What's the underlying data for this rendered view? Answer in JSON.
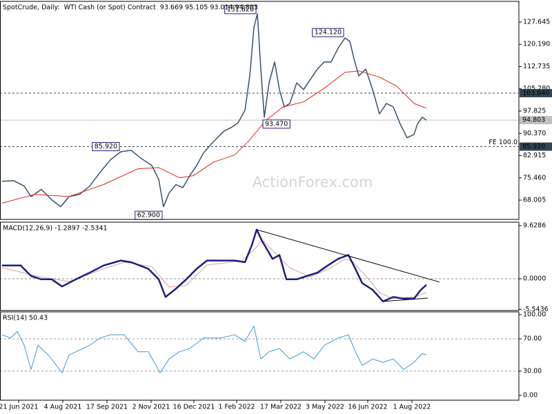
{
  "chart_data": [
    {
      "type": "line",
      "title": "SpotCrude, Daily:  WTI Cash (or Spot) Contract  93.669 95.105 93.014 94.803",
      "watermark": "ActionForex.com",
      "xlim": [
        -1.5,
        374.5
      ],
      "ylim": [
        61.54,
        134.57
      ],
      "yticks": [
        127.645,
        {
          "value": 120.19,
          "label": "120.190"
        },
        112.735,
        {
          "value": 105.28,
          "label": "105.280"
        },
        97.825,
        {
          "value": 90.37,
          "label": "90.370"
        },
        82.915,
        {
          "value": 75.46,
          "label": "75.460"
        },
        68.005
      ],
      "series": [
        {
          "color": "#34506b",
          "line_width": 1.5,
          "x": [
            0,
            8.5,
            16,
            21,
            28.5,
            36,
            42.5,
            48.5,
            56,
            63.5,
            71,
            78.5,
            86,
            93.5,
            101,
            108.5,
            113.5,
            117,
            121,
            126,
            131,
            136,
            141,
            146,
            151,
            156,
            161,
            166,
            171,
            176,
            179.5,
            182.5,
            185,
            187.5,
            190,
            193.5,
            197.5,
            201,
            204.5,
            208.5,
            213.5,
            218.5,
            223.5,
            228.5,
            233.5,
            238.5,
            243.5,
            248.5,
            252,
            255,
            258.5,
            263.5,
            268.5,
            273.5,
            278.5,
            283.5,
            288.5,
            293.5,
            298.5,
            301,
            304.5,
            307.5
          ],
          "values": [
            74.3,
            74.5,
            72.7,
            69.2,
            71.6,
            68.1,
            65.8,
            69.2,
            69.9,
            72.7,
            77.3,
            81.5,
            84.2,
            84.7,
            81.9,
            79.6,
            75.0,
            65.8,
            70.4,
            73.2,
            72.2,
            76.2,
            79.6,
            83.8,
            86.5,
            88.9,
            91.2,
            92.3,
            93.9,
            98.1,
            109.6,
            125.8,
            130.4,
            111.9,
            95.8,
            107.3,
            114.3,
            105.0,
            99.2,
            100.4,
            107.3,
            105.0,
            108.5,
            111.9,
            114.3,
            114.3,
            118.9,
            122.3,
            121.2,
            115.4,
            109.6,
            111.9,
            105.0,
            96.9,
            100.4,
            99.2,
            93.5,
            88.9,
            90.0,
            93.5,
            95.8,
            94.8
          ]
        },
        {
          "color": "#e02020",
          "line_width": 1,
          "x": [
            0,
            23.5,
            48.5,
            73.5,
            98.5,
            113.5,
            128.5,
            138.5,
            153.5,
            168.5,
            178.5,
            191,
            203.5,
            218.5,
            233.5,
            248.5,
            258.5,
            273.5,
            286,
            298.5,
            307.5
          ],
          "values": [
            67.0,
            69.9,
            69.2,
            73.2,
            78.5,
            78.9,
            75.5,
            76.2,
            80.8,
            83.1,
            87.7,
            94.6,
            99.2,
            100.9,
            105.5,
            110.8,
            111.3,
            109.2,
            106.2,
            100.4,
            98.8
          ]
        }
      ],
      "hlines": [
        {
          "value": 103.84,
          "label": "103.840",
          "style": "dashed",
          "color": "#34454f",
          "box_color": "#34454f"
        },
        {
          "value": 94.803,
          "label": "94.803",
          "style": "solid",
          "color": "#c0c0c0",
          "box_color": "#c0c0c0"
        },
        {
          "value": 85.92,
          "label": "85.920",
          "note": "FE 100.0",
          "style": "dashed",
          "color": "#34454f",
          "box_color": "#34454f"
        }
      ],
      "annotations": [
        {
          "x": 185,
          "value": 131.82,
          "label": "131.820",
          "side": "left"
        },
        {
          "x": 248.5,
          "value": 124.12,
          "label": "124.120",
          "side": "left"
        },
        {
          "x": 188,
          "value": 93.47,
          "label": "93.470",
          "side": "right"
        },
        {
          "x": 86,
          "value": 85.92,
          "label": "85.920",
          "side": "left"
        },
        {
          "x": 117,
          "value": 62.9,
          "label": "62.900",
          "side": "left"
        }
      ]
    },
    {
      "type": "line",
      "title": "MACD(12,26,9) -1.2897 -2.5341",
      "xlim": [
        -1.5,
        374.5
      ],
      "ylim": [
        -5.75,
        10.25
      ],
      "yticks": [
        9.6286,
        {
          "value": 0,
          "label": "0.0000"
        },
        -5.5436
      ],
      "zero_line": 0,
      "series": [
        {
          "color": "#d9a3a3",
          "line_width": 1,
          "x": [
            0,
            28.5,
            48.5,
            73.5,
            88.5,
            108.5,
            121,
            133.5,
            148.5,
            173.5,
            183.5,
            188.5,
            198.5,
            208.5,
            223.5,
            238.5,
            248.5,
            253.5,
            263.5,
            273.5,
            283.5,
            298.5,
            307.5
          ],
          "values": [
            2.0,
            0.3,
            -0.5,
            1.8,
            3.0,
            2.2,
            -1.5,
            -1.2,
            2.5,
            3.2,
            5.5,
            7.0,
            4.5,
            2.0,
            0.3,
            2.0,
            3.6,
            3.2,
            0.5,
            -2.5,
            -3.6,
            -3.3,
            -2.5
          ]
        },
        {
          "color": "#1c1c80",
          "line_width": 2.5,
          "x": [
            0,
            13.5,
            21,
            28.5,
            36,
            43.5,
            53.5,
            63.5,
            73.5,
            86,
            93.5,
            106,
            113.5,
            118.5,
            126,
            133.5,
            141,
            148.5,
            158.5,
            168.5,
            176,
            181,
            184.5,
            188.5,
            196,
            201,
            206,
            213.5,
            221,
            228.5,
            236,
            243.5,
            251,
            256,
            261,
            268.5,
            276,
            283.5,
            291,
            298.5,
            303.5,
            307.5
          ],
          "values": [
            2.4,
            2.4,
            0.5,
            -0.1,
            -0.1,
            -1.4,
            -0.1,
            1.1,
            2.4,
            3.3,
            3.0,
            1.8,
            -0.1,
            -3.3,
            -1.8,
            -0.1,
            1.8,
            3.3,
            3.3,
            3.3,
            3.0,
            6.1,
            8.9,
            6.8,
            3.6,
            4.3,
            -0.1,
            -0.1,
            0.5,
            1.1,
            2.4,
            3.6,
            4.3,
            1.8,
            -0.8,
            -2.0,
            -4.1,
            -3.3,
            -3.6,
            -3.6,
            -2.0,
            -1.1
          ]
        }
      ],
      "trendlines": [
        {
          "x": [
            184.5,
            317
          ],
          "values": [
            8.9,
            -0.6
          ]
        },
        {
          "x": [
            277,
            308.5
          ],
          "values": [
            -4.1,
            -3.5
          ]
        }
      ]
    },
    {
      "type": "line",
      "title": "RSI(14) 50.43",
      "xlim": [
        -1.5,
        374.5
      ],
      "ylim": [
        -6,
        103.4
      ],
      "yticks": [
        {
          "value": 100,
          "label": "100.00"
        },
        {
          "value": 70,
          "label": "70.00"
        },
        {
          "value": 30,
          "label": "30.00"
        },
        {
          "value": 0,
          "label": "0.00"
        }
      ],
      "levels": [
        70,
        30
      ],
      "series": [
        {
          "color": "#3a9ad9",
          "line_width": 1,
          "x": [
            0,
            6,
            11,
            16,
            21,
            26,
            33.5,
            43.5,
            48.5,
            63.5,
            71,
            78.5,
            88.5,
            98.5,
            106,
            114.5,
            121,
            128.5,
            136,
            146,
            158.5,
            168.5,
            176,
            182.5,
            187.5,
            193.5,
            201,
            208.5,
            218.5,
            226,
            233.5,
            243.5,
            251,
            256,
            261,
            268.5,
            276,
            283.5,
            291,
            298.5,
            304.5,
            307.5
          ],
          "values": [
            75,
            71,
            79,
            62,
            32,
            62,
            50,
            28,
            50,
            62,
            71,
            75,
            75,
            54,
            54,
            28,
            45,
            54,
            58,
            71,
            71,
            75,
            67,
            86,
            45,
            54,
            58,
            45,
            54,
            45,
            62,
            71,
            75,
            54,
            37,
            45,
            41,
            45,
            32,
            41,
            52,
            50
          ]
        }
      ],
      "xticks": [
        {
          "value": 12,
          "label": "21 Jun 2021"
        },
        {
          "value": 44,
          "label": "4 Aug 2021"
        },
        {
          "value": 76,
          "label": "17 Sep 2021"
        },
        {
          "value": 108,
          "label": "2 Nov 2021"
        },
        {
          "value": 139,
          "label": "16 Dec 2021"
        },
        {
          "value": 170,
          "label": "1 Feb 2022"
        },
        {
          "value": 202,
          "label": "17 Mar 2022"
        },
        {
          "value": 234,
          "label": "3 May 2022"
        },
        {
          "value": 265,
          "label": "16 Jun 2022"
        },
        {
          "value": 297,
          "label": "1 Aug 2022"
        }
      ]
    }
  ]
}
